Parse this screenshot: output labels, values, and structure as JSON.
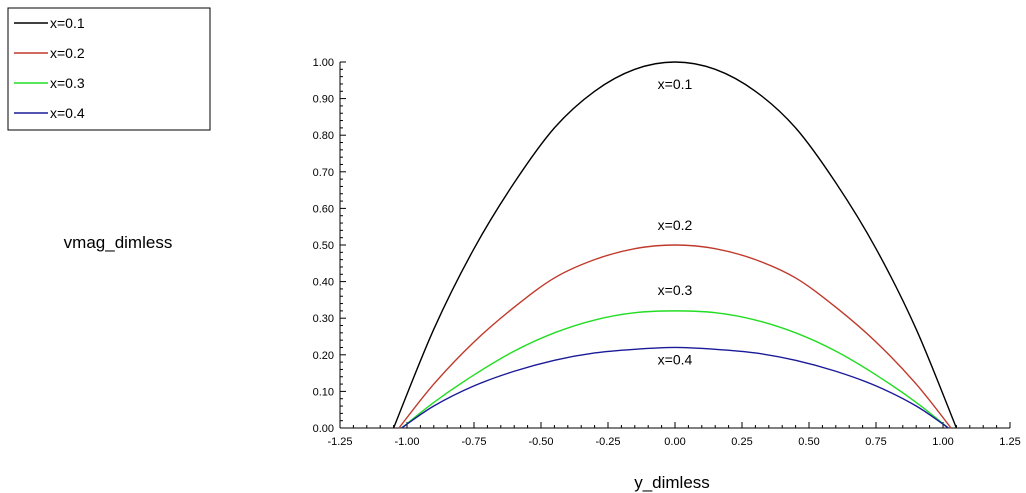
{
  "chart_data": {
    "type": "line",
    "xlabel": "y_dimless",
    "ylabel": "vmag_dimless",
    "xlim": [
      -1.25,
      1.25
    ],
    "ylim": [
      0.0,
      1.0
    ],
    "x_ticks": [
      "-1.25",
      "-1.00",
      "-0.75",
      "-0.50",
      "-0.25",
      "0.00",
      "0.25",
      "0.50",
      "0.75",
      "1.00",
      "1.25"
    ],
    "y_ticks": [
      "0.00",
      "0.10",
      "0.20",
      "0.30",
      "0.40",
      "0.50",
      "0.60",
      "0.70",
      "0.80",
      "0.90",
      "1.00"
    ],
    "legend_position": "top-left",
    "grid": false,
    "series": [
      {
        "name": "x=0.1",
        "color": "#000000",
        "label": "x=0.1",
        "x": [
          -1.05,
          -0.9,
          -0.75,
          -0.6,
          -0.45,
          -0.3,
          -0.15,
          0.0,
          0.15,
          0.3,
          0.45,
          0.6,
          0.75,
          0.9,
          1.05
        ],
        "y": [
          0.0,
          0.27,
          0.49,
          0.67,
          0.82,
          0.92,
          0.98,
          1.0,
          0.98,
          0.92,
          0.82,
          0.67,
          0.49,
          0.27,
          0.0
        ]
      },
      {
        "name": "x=0.2",
        "color": "#c0392b",
        "label": "x=0.2",
        "x": [
          -1.03,
          -0.9,
          -0.75,
          -0.6,
          -0.45,
          -0.3,
          -0.15,
          0.0,
          0.15,
          0.3,
          0.45,
          0.6,
          0.75,
          0.9,
          1.03
        ],
        "y": [
          0.0,
          0.12,
          0.235,
          0.33,
          0.41,
          0.46,
          0.49,
          0.5,
          0.49,
          0.46,
          0.41,
          0.33,
          0.235,
          0.12,
          0.0
        ]
      },
      {
        "name": "x=0.3",
        "color": "#22dd22",
        "label": "x=0.3",
        "x": [
          -1.02,
          -0.9,
          -0.75,
          -0.6,
          -0.45,
          -0.3,
          -0.15,
          0.0,
          0.15,
          0.3,
          0.45,
          0.6,
          0.75,
          0.9,
          1.02
        ],
        "y": [
          0.0,
          0.07,
          0.145,
          0.21,
          0.26,
          0.295,
          0.315,
          0.32,
          0.315,
          0.295,
          0.26,
          0.21,
          0.145,
          0.07,
          0.0
        ]
      },
      {
        "name": "x=0.4",
        "color": "#1a1a99",
        "label": "x=0.4",
        "x": [
          -1.02,
          -0.9,
          -0.75,
          -0.6,
          -0.45,
          -0.3,
          -0.15,
          0.0,
          0.15,
          0.3,
          0.45,
          0.6,
          0.75,
          0.9,
          1.02
        ],
        "y": [
          0.0,
          0.06,
          0.115,
          0.155,
          0.185,
          0.205,
          0.215,
          0.22,
          0.215,
          0.205,
          0.185,
          0.155,
          0.115,
          0.06,
          0.0
        ]
      }
    ]
  }
}
